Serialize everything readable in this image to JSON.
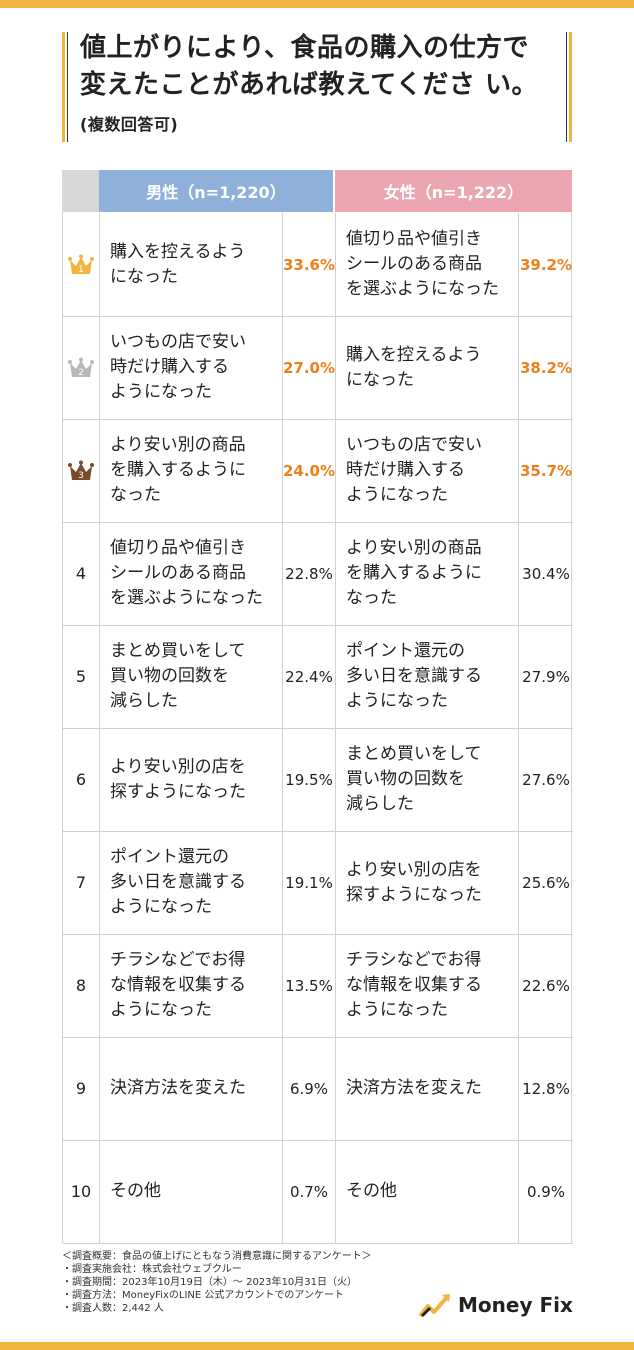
{
  "title": {
    "main": "値上がりにより、食品の購入の仕方で 変えたことがあれば教えてくださ い。",
    "sub": "(複数回答可)"
  },
  "chart_data": {
    "type": "table",
    "headers": {
      "male": "男性（n=1,220）",
      "female": "女性（n=1,222）"
    },
    "rows": [
      {
        "rank": "1",
        "male_label": "購入を控えるよう\nになった",
        "male_value": "33.6%",
        "female_label": "値切り品や値引き\nシールのある商品\nを選ぶようになった",
        "female_value": "39.2%"
      },
      {
        "rank": "2",
        "male_label": "いつもの店で安い\n時だけ購入する\nようになった",
        "male_value": "27.0%",
        "female_label": "購入を控えるよう\nになった",
        "female_value": "38.2%"
      },
      {
        "rank": "3",
        "male_label": "より安い別の商品\nを購入するように\nなった",
        "male_value": "24.0%",
        "female_label": "いつもの店で安い\n時だけ購入する\nようになった",
        "female_value": "35.7%"
      },
      {
        "rank": "4",
        "male_label": "値切り品や値引き\nシールのある商品\nを選ぶようになった",
        "male_value": "22.8%",
        "female_label": "より安い別の商品\nを購入するように\nなった",
        "female_value": "30.4%"
      },
      {
        "rank": "5",
        "male_label": "まとめ買いをして\n買い物の回数を\n減らした",
        "male_value": "22.4%",
        "female_label": "ポイント還元の\n多い日を意識する\nようになった",
        "female_value": "27.9%"
      },
      {
        "rank": "6",
        "male_label": "より安い別の店を\n探すようになった",
        "male_value": "19.5%",
        "female_label": "まとめ買いをして\n買い物の回数を\n減らした",
        "female_value": "27.6%"
      },
      {
        "rank": "7",
        "male_label": "ポイント還元の\n多い日を意識する\nようになった",
        "male_value": "19.1%",
        "female_label": "より安い別の店を\n探すようになった",
        "female_value": "25.6%"
      },
      {
        "rank": "8",
        "male_label": "チラシなどでお得\nな情報を収集する\nようになった",
        "male_value": "13.5%",
        "female_label": "チラシなどでお得\nな情報を収集する\nようになった",
        "female_value": "22.6%"
      },
      {
        "rank": "9",
        "male_label": "決済方法を変えた",
        "male_value": "6.9%",
        "female_label": "決済方法を変えた",
        "female_value": "12.8%"
      },
      {
        "rank": "10",
        "male_label": "その他",
        "male_value": "0.7%",
        "female_label": "その他",
        "female_value": "0.9%"
      }
    ]
  },
  "colors": {
    "accent": "#f1b43c",
    "male_header": "#8fb1d9",
    "female_header": "#eca6b2",
    "top_value": "#f07f1b",
    "crown_gold": "#f1b43c",
    "crown_silver": "#b8b8b8",
    "crown_bronze": "#7a4a2a"
  },
  "notes": [
    "＜調査概要：食品の値上げにともなう消費意識に関するアンケート＞",
    "・調査実施会社：株式会社ウェブクルー",
    "・調査期間：2023年10月19日（木）〜 2023年10月31日（火）",
    "・調査方法：MoneyFixのLINE 公式アカウントでのアンケート",
    "・調査人数：2,442 人"
  ],
  "logo": {
    "name": "Money Fix",
    "icon": "rising-arrow-logo-icon"
  }
}
